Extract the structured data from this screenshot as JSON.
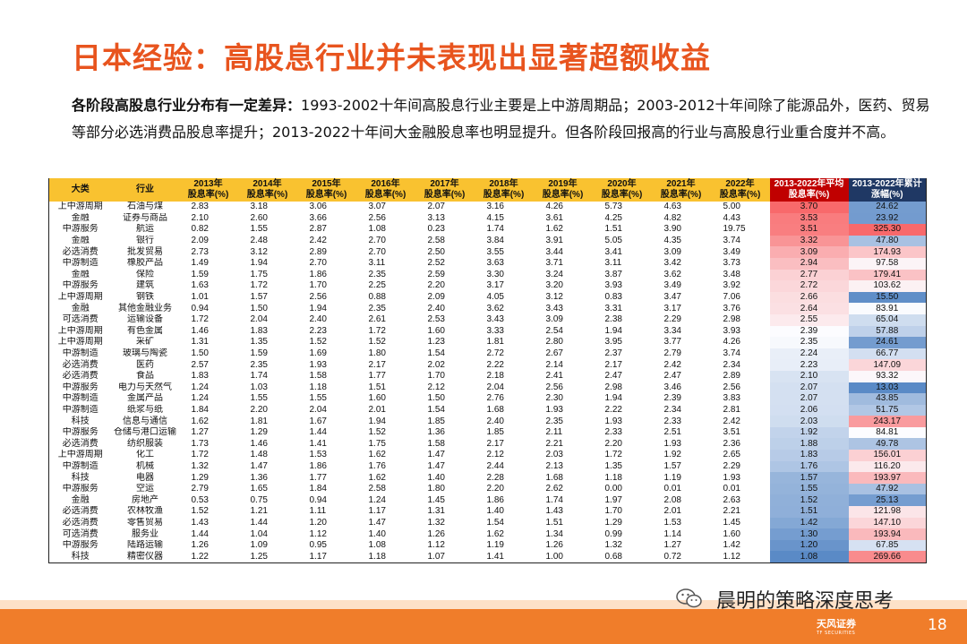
{
  "title": "日本经验：高股息行业并未表现出显著超额收益",
  "desc": {
    "bold": "各阶段高股息行业分布有一定差异：",
    "text": "1993-2002十年间高股息行业主要是上中游周期品；2003-2012十年间除了能源品外，医药、贸易等部分必选消费品股息率提升；2013-2022十年间大金融股息率也明显提升。但各阶段回报高的行业与高股息行业重合度并不高。"
  },
  "table": {
    "headers": [
      "大类",
      "行业",
      "2013年\n股息率(%)",
      "2014年\n股息率(%)",
      "2015年\n股息率(%)",
      "2016年\n股息率(%)",
      "2017年\n股息率(%)",
      "2018年\n股息率(%)",
      "2019年\n股息率(%)",
      "2020年\n股息率(%)",
      "2021年\n股息率(%)",
      "2022年\n股息率(%)",
      "2013-2022年平均\n股息率(%)",
      "2013-2022年累计\n涨幅(%)"
    ],
    "rows": [
      [
        "上中游周期",
        "石油与煤",
        "2.83",
        "3.18",
        "3.06",
        "3.07",
        "2.07",
        "3.16",
        "4.26",
        "5.73",
        "4.63",
        "5.00",
        "3.70",
        "24.62"
      ],
      [
        "金融",
        "证券与商品",
        "2.10",
        "2.60",
        "3.66",
        "2.56",
        "3.13",
        "4.15",
        "3.61",
        "4.25",
        "4.82",
        "4.43",
        "3.53",
        "23.92"
      ],
      [
        "中游服务",
        "航运",
        "0.82",
        "1.55",
        "2.87",
        "1.08",
        "0.23",
        "1.74",
        "1.62",
        "1.51",
        "3.90",
        "19.75",
        "3.51",
        "325.30"
      ],
      [
        "金融",
        "银行",
        "2.09",
        "2.48",
        "2.42",
        "2.70",
        "2.58",
        "3.84",
        "3.91",
        "5.05",
        "4.35",
        "3.74",
        "3.32",
        "47.80"
      ],
      [
        "必选消费",
        "批发贸易",
        "2.73",
        "3.12",
        "2.89",
        "2.70",
        "2.50",
        "3.55",
        "3.44",
        "3.41",
        "3.09",
        "3.49",
        "3.09",
        "174.93"
      ],
      [
        "中游制造",
        "橡胶产品",
        "1.49",
        "1.94",
        "2.70",
        "3.11",
        "2.52",
        "3.63",
        "3.71",
        "3.11",
        "3.42",
        "3.73",
        "2.94",
        "97.58"
      ],
      [
        "金融",
        "保险",
        "1.59",
        "1.75",
        "1.86",
        "2.35",
        "2.59",
        "3.30",
        "3.24",
        "3.87",
        "3.62",
        "3.48",
        "2.77",
        "179.41"
      ],
      [
        "中游服务",
        "建筑",
        "1.63",
        "1.72",
        "1.70",
        "2.25",
        "2.20",
        "3.17",
        "3.20",
        "3.93",
        "3.49",
        "3.92",
        "2.72",
        "103.62"
      ],
      [
        "上中游周期",
        "钢铁",
        "1.01",
        "1.57",
        "2.56",
        "0.88",
        "2.09",
        "4.05",
        "3.12",
        "0.83",
        "3.47",
        "7.06",
        "2.66",
        "15.50"
      ],
      [
        "金融",
        "其他金融业务",
        "0.94",
        "1.50",
        "1.94",
        "2.35",
        "2.40",
        "3.62",
        "3.43",
        "3.31",
        "3.17",
        "3.76",
        "2.64",
        "83.91"
      ],
      [
        "可选消费",
        "运输设备",
        "1.72",
        "2.04",
        "2.40",
        "2.61",
        "2.53",
        "3.43",
        "3.09",
        "2.38",
        "2.29",
        "2.98",
        "2.55",
        "65.04"
      ],
      [
        "上中游周期",
        "有色金属",
        "1.46",
        "1.83",
        "2.23",
        "1.72",
        "1.60",
        "3.33",
        "2.54",
        "1.94",
        "3.34",
        "3.93",
        "2.39",
        "57.88"
      ],
      [
        "上中游周期",
        "采矿",
        "1.31",
        "1.35",
        "1.52",
        "1.52",
        "1.23",
        "1.81",
        "2.80",
        "3.95",
        "3.77",
        "4.26",
        "2.35",
        "24.61"
      ],
      [
        "中游制造",
        "玻璃与陶瓷",
        "1.50",
        "1.59",
        "1.69",
        "1.80",
        "1.54",
        "2.72",
        "2.67",
        "2.37",
        "2.79",
        "3.74",
        "2.24",
        "66.77"
      ],
      [
        "必选消费",
        "医药",
        "2.57",
        "2.35",
        "1.93",
        "2.17",
        "2.02",
        "2.22",
        "2.14",
        "2.17",
        "2.42",
        "2.34",
        "2.23",
        "147.09"
      ],
      [
        "必选消费",
        "食品",
        "1.83",
        "1.74",
        "1.58",
        "1.77",
        "1.70",
        "2.18",
        "2.41",
        "2.47",
        "2.47",
        "2.89",
        "2.10",
        "93.32"
      ],
      [
        "中游服务",
        "电力与天然气",
        "1.24",
        "1.03",
        "1.18",
        "1.51",
        "2.12",
        "2.04",
        "2.56",
        "2.98",
        "3.46",
        "2.56",
        "2.07",
        "13.03"
      ],
      [
        "中游制造",
        "金属产品",
        "1.24",
        "1.55",
        "1.55",
        "1.60",
        "1.50",
        "2.76",
        "2.30",
        "1.94",
        "2.39",
        "3.83",
        "2.07",
        "43.85"
      ],
      [
        "中游制造",
        "纸浆与纸",
        "1.84",
        "2.20",
        "2.04",
        "2.01",
        "1.54",
        "1.68",
        "1.93",
        "2.22",
        "2.34",
        "2.81",
        "2.06",
        "51.75"
      ],
      [
        "科技",
        "信息与通信",
        "1.62",
        "1.81",
        "1.67",
        "1.94",
        "1.85",
        "2.40",
        "2.35",
        "1.93",
        "2.33",
        "2.42",
        "2.03",
        "243.17"
      ],
      [
        "中游服务",
        "仓储与港口运输",
        "1.27",
        "1.29",
        "1.44",
        "1.52",
        "1.36",
        "1.85",
        "2.11",
        "2.33",
        "2.51",
        "3.51",
        "1.92",
        "84.81"
      ],
      [
        "必选消费",
        "纺织服装",
        "1.73",
        "1.46",
        "1.41",
        "1.75",
        "1.58",
        "2.17",
        "2.21",
        "2.20",
        "1.93",
        "2.36",
        "1.88",
        "49.78"
      ],
      [
        "上中游周期",
        "化工",
        "1.72",
        "1.48",
        "1.53",
        "1.62",
        "1.47",
        "2.12",
        "2.03",
        "1.72",
        "1.92",
        "2.65",
        "1.83",
        "156.01"
      ],
      [
        "中游制造",
        "机械",
        "1.32",
        "1.47",
        "1.86",
        "1.76",
        "1.47",
        "2.44",
        "2.13",
        "1.35",
        "1.57",
        "2.29",
        "1.76",
        "116.20"
      ],
      [
        "科技",
        "电器",
        "1.29",
        "1.36",
        "1.77",
        "1.62",
        "1.40",
        "2.28",
        "1.68",
        "1.18",
        "1.19",
        "1.93",
        "1.57",
        "193.97"
      ],
      [
        "中游服务",
        "空运",
        "2.79",
        "1.65",
        "1.84",
        "2.58",
        "1.80",
        "2.20",
        "2.62",
        "0.00",
        "0.01",
        "0.01",
        "1.55",
        "47.92"
      ],
      [
        "金融",
        "房地产",
        "0.53",
        "0.75",
        "0.94",
        "1.24",
        "1.45",
        "1.86",
        "1.74",
        "1.97",
        "2.08",
        "2.63",
        "1.52",
        "25.13"
      ],
      [
        "必选消费",
        "农林牧渔",
        "1.52",
        "1.21",
        "1.11",
        "1.17",
        "1.31",
        "1.40",
        "1.43",
        "1.70",
        "2.01",
        "2.21",
        "1.51",
        "121.98"
      ],
      [
        "必选消费",
        "零售贸易",
        "1.43",
        "1.44",
        "1.20",
        "1.47",
        "1.32",
        "1.54",
        "1.51",
        "1.29",
        "1.53",
        "1.45",
        "1.42",
        "147.10"
      ],
      [
        "可选消费",
        "服务业",
        "1.44",
        "1.04",
        "1.12",
        "1.40",
        "1.26",
        "1.62",
        "1.34",
        "0.99",
        "1.14",
        "1.60",
        "1.30",
        "193.94"
      ],
      [
        "中游服务",
        "陆路运输",
        "1.26",
        "1.09",
        "0.95",
        "1.08",
        "1.12",
        "1.19",
        "1.26",
        "1.32",
        "1.27",
        "1.42",
        "1.20",
        "67.85"
      ],
      [
        "科技",
        "精密仪器",
        "1.22",
        "1.25",
        "1.17",
        "1.18",
        "1.07",
        "1.41",
        "1.00",
        "0.68",
        "0.72",
        "1.12",
        "1.08",
        "269.66"
      ]
    ]
  },
  "footer": {
    "brand": "晨明的策略深度思考",
    "logo_cn": "天风证券",
    "logo_en": "TF SECURITIES",
    "page": "18"
  },
  "colors": {
    "title": "#e8541e",
    "header": "#f9c230",
    "footer": "#f07d2a",
    "heat_high": "#f8696b",
    "heat_low": "#5a8ac6"
  },
  "icons": {
    "wechat": "wechat-icon"
  }
}
